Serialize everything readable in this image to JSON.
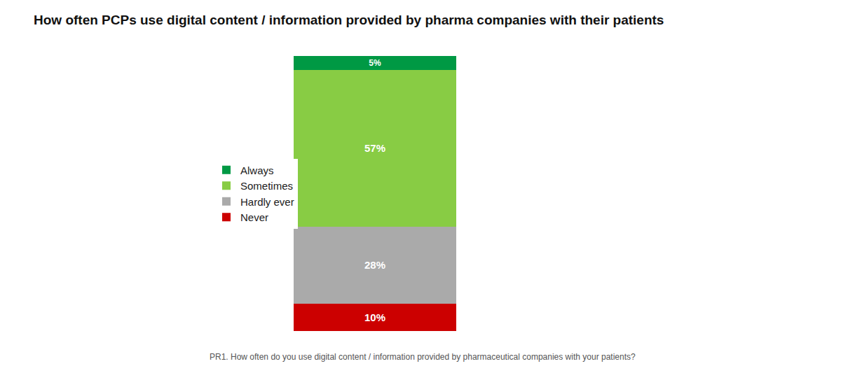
{
  "chart_data": {
    "type": "bar",
    "title": "How often PCPs use digital content / information provided by pharma companies with their patients",
    "annotations": [
      "PR1. How often do you use digital content / information provided by pharmaceutical companies with your patients?"
    ],
    "categories": [
      null
    ],
    "stacked": true,
    "series": [
      {
        "name": "Never",
        "color": "#cc0000",
        "values": [
          10
        ],
        "value_labels": [
          "10%"
        ]
      },
      {
        "name": "Hardly ever",
        "color": "#aaaaaa",
        "values": [
          28
        ],
        "value_labels": [
          "28%"
        ]
      },
      {
        "name": "Sometimes",
        "color": "#88cc44",
        "values": [
          57
        ],
        "value_labels": [
          "57%"
        ]
      },
      {
        "name": "Always",
        "color": "#009944",
        "values": [
          5
        ],
        "value_labels": [
          "5%"
        ]
      }
    ],
    "ylim": [
      0,
      100
    ],
    "grid": false,
    "legend": "left",
    "data_labels": true,
    "tick_labels": false
  }
}
